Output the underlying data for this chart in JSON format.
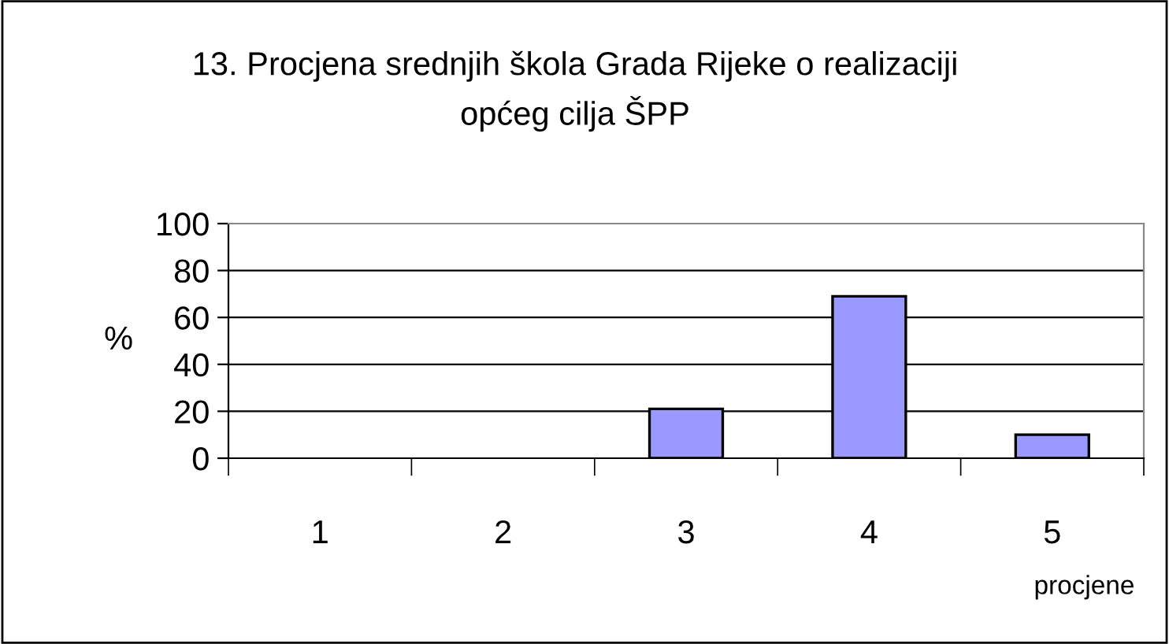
{
  "chart_data": {
    "type": "bar",
    "title": "13. Procjena srednjih škola Grada Rijeke o realizaciji\nopćeg cilja ŠPP",
    "categories": [
      "1",
      "2",
      "3",
      "4",
      "5"
    ],
    "values": [
      0,
      0,
      21,
      69,
      10
    ],
    "color": "#9999ff",
    "ylim": [
      0,
      100
    ],
    "yticks": [
      0,
      20,
      40,
      60,
      80,
      100
    ],
    "grid": "y",
    "ylabel": "%",
    "xlabel": "procjene"
  }
}
